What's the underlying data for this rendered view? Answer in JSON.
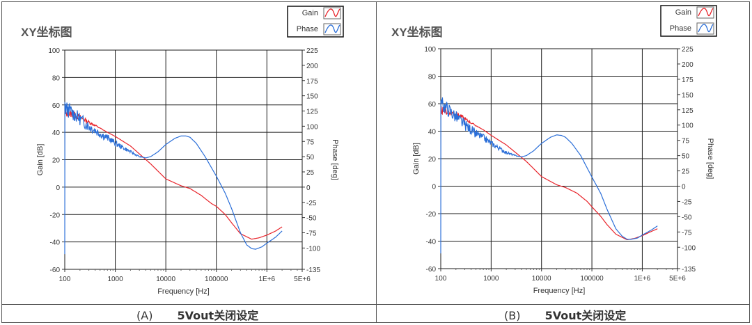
{
  "panels": [
    {
      "title": "XY坐标图",
      "caption_letter": "(A)",
      "caption_text": "5Vout关闭设定"
    },
    {
      "title": "XY坐标图",
      "caption_letter": "(B)",
      "caption_text": "5Vout关闭设定"
    }
  ],
  "colors": {
    "gain": "#e8232a",
    "phase": "#2a6ed8",
    "grid": "#1a1a1a",
    "frame": "#555555"
  },
  "chart_data": [
    {
      "type": "line",
      "title": "XY坐标图",
      "xlabel": "Frequency [Hz]",
      "ylabel": "Gain [dB]",
      "y2label": "Phase [deg]",
      "xscale": "log",
      "xlim": [
        100,
        5000000
      ],
      "ylim": [
        -60,
        100
      ],
      "y2lim": [
        -135,
        225
      ],
      "x_ticks": [
        100,
        1000,
        10000,
        100000,
        1000000,
        5000000
      ],
      "x_tick_labels": [
        "100",
        "1000",
        "10000",
        "100000",
        "1E+6",
        "5E+6"
      ],
      "y_ticks": [
        -60,
        -40,
        -20,
        0,
        20,
        40,
        60,
        80,
        100
      ],
      "y2_ticks": [
        -135,
        -100,
        -75,
        -50,
        -25,
        0,
        25,
        50,
        75,
        100,
        125,
        150,
        175,
        200,
        225
      ],
      "grid": true,
      "legend_position": "top-right",
      "series": [
        {
          "name": "Gain",
          "axis": "left",
          "x": [
            100,
            150,
            250,
            400,
            700,
            1000,
            2000,
            5000,
            10000,
            20000,
            30000,
            50000,
            80000,
            100000,
            150000,
            200000,
            300000,
            500000,
            700000,
            1000000,
            1500000,
            2000000
          ],
          "y": [
            54,
            53,
            49,
            45,
            40,
            37,
            30,
            17,
            6,
            1,
            -1,
            -6,
            -12,
            -14,
            -20,
            -26,
            -34,
            -38,
            -37,
            -35,
            -32,
            -29
          ]
        },
        {
          "name": "Phase",
          "axis": "right",
          "x": [
            100,
            110,
            130,
            150,
            200,
            300,
            500,
            800,
            1000,
            2000,
            3000,
            4000,
            5000,
            7000,
            10000,
            15000,
            20000,
            25000,
            30000,
            40000,
            60000,
            100000,
            150000,
            200000,
            300000,
            400000,
            500000,
            600000,
            800000,
            1000000,
            1500000,
            2000000
          ],
          "y": [
            130,
            128,
            125,
            120,
            112,
            100,
            88,
            78,
            72,
            58,
            50,
            48,
            50,
            58,
            70,
            80,
            84,
            84,
            82,
            72,
            50,
            18,
            -10,
            -35,
            -75,
            -95,
            -101,
            -102,
            -98,
            -92,
            -82,
            -72
          ]
        }
      ]
    },
    {
      "type": "line",
      "title": "XY坐标图",
      "xlabel": "Frequency [Hz]",
      "ylabel": "Gain [dB]",
      "y2label": "Phase [deg]",
      "xscale": "log",
      "xlim": [
        100,
        5000000
      ],
      "ylim": [
        -60,
        100
      ],
      "y2lim": [
        -135,
        225
      ],
      "x_ticks": [
        100,
        1000,
        10000,
        100000,
        1000000,
        5000000
      ],
      "x_tick_labels": [
        "100",
        "1000",
        "10000",
        "100000",
        "1E+6",
        "5E+6"
      ],
      "y_ticks": [
        -60,
        -40,
        -20,
        0,
        20,
        40,
        60,
        80,
        100
      ],
      "y2_ticks": [
        -135,
        -100,
        -75,
        -50,
        -25,
        0,
        25,
        50,
        75,
        100,
        125,
        150,
        175,
        200,
        225
      ],
      "grid": true,
      "legend_position": "top-right",
      "series": [
        {
          "name": "Gain",
          "axis": "left",
          "x": [
            100,
            150,
            250,
            400,
            700,
            1000,
            2000,
            5000,
            10000,
            20000,
            30000,
            50000,
            80000,
            100000,
            150000,
            200000,
            300000,
            500000,
            700000,
            1000000,
            1500000,
            2000000
          ],
          "y": [
            55,
            54,
            51,
            46,
            41,
            37,
            30,
            18,
            7,
            1,
            -1,
            -5,
            -11,
            -15,
            -22,
            -28,
            -35,
            -39,
            -38,
            -36,
            -33,
            -31
          ]
        },
        {
          "name": "Phase",
          "axis": "right",
          "x": [
            100,
            110,
            130,
            150,
            200,
            300,
            500,
            800,
            1000,
            2000,
            3000,
            4000,
            5000,
            7000,
            10000,
            15000,
            20000,
            25000,
            30000,
            40000,
            60000,
            100000,
            150000,
            200000,
            300000,
            400000,
            500000,
            600000,
            800000,
            1000000,
            1500000,
            2000000
          ],
          "y": [
            135,
            132,
            128,
            123,
            113,
            100,
            86,
            76,
            70,
            55,
            50,
            48,
            50,
            58,
            70,
            80,
            84,
            83,
            80,
            70,
            50,
            15,
            -12,
            -38,
            -70,
            -82,
            -87,
            -87,
            -85,
            -80,
            -72,
            -65
          ]
        }
      ]
    }
  ]
}
